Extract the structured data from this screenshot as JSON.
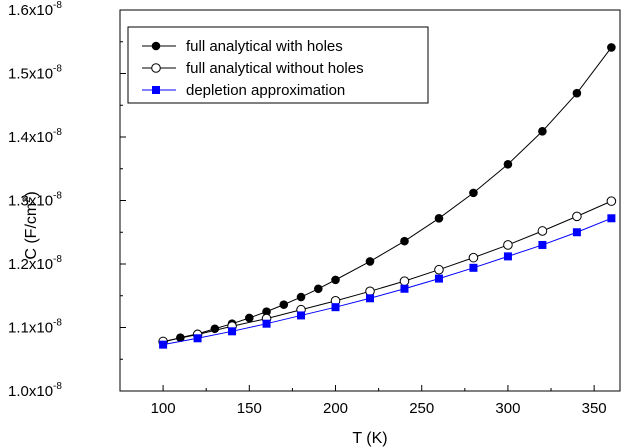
{
  "chart_data": {
    "type": "line",
    "xlabel": "T (K)",
    "ylabel": {
      "prefix": "C (F/cm",
      "sup": "2",
      "suffix": ")"
    },
    "xlim": [
      75,
      365
    ],
    "ylim": [
      1e-08,
      1.6e-08
    ],
    "x_ticks": [
      100,
      150,
      200,
      250,
      300,
      350
    ],
    "y_ticks": [
      {
        "value": 1e-08,
        "mantissa": "1.0x10",
        "exp": "-8"
      },
      {
        "value": 1.1e-08,
        "mantissa": "1.1x10",
        "exp": "-8"
      },
      {
        "value": 1.2e-08,
        "mantissa": "1.2x10",
        "exp": "-8"
      },
      {
        "value": 1.3e-08,
        "mantissa": "1.3x10",
        "exp": "-8"
      },
      {
        "value": 1.4e-08,
        "mantissa": "1.4x10",
        "exp": "-8"
      },
      {
        "value": 1.5e-08,
        "mantissa": "1.5x10",
        "exp": "-8"
      },
      {
        "value": 1.6e-08,
        "mantissa": "1.6x10",
        "exp": "-8"
      }
    ],
    "legend_position": "top-left",
    "grid": false,
    "series": [
      {
        "name": "full analytical with holes",
        "marker": "filled-circle",
        "line_color": "#000000",
        "marker_color": "#000000",
        "x": [
          100,
          110,
          120,
          130,
          140,
          150,
          160,
          170,
          180,
          190,
          200,
          220,
          240,
          260,
          280,
          300,
          320,
          340,
          360
        ],
        "y": [
          1.077e-08,
          1.084e-08,
          1.09e-08,
          1.098e-08,
          1.106e-08,
          1.115e-08,
          1.125e-08,
          1.136e-08,
          1.148e-08,
          1.161e-08,
          1.175e-08,
          1.204e-08,
          1.236e-08,
          1.272e-08,
          1.312e-08,
          1.357e-08,
          1.409e-08,
          1.469e-08,
          1.541e-08
        ]
      },
      {
        "name": "full analytical without holes",
        "marker": "open-circle",
        "line_color": "#000000",
        "marker_color": "#000000",
        "x": [
          100,
          120,
          140,
          160,
          180,
          200,
          220,
          240,
          260,
          280,
          300,
          320,
          340,
          360
        ],
        "y": [
          1.078e-08,
          1.089e-08,
          1.102e-08,
          1.114e-08,
          1.128e-08,
          1.142e-08,
          1.157e-08,
          1.173e-08,
          1.191e-08,
          1.21e-08,
          1.23e-08,
          1.252e-08,
          1.275e-08,
          1.299e-08
        ]
      },
      {
        "name": "depletion approximation",
        "marker": "filled-square",
        "line_color": "#0000ff",
        "marker_color": "#0000ff",
        "x": [
          100,
          120,
          140,
          160,
          180,
          200,
          220,
          240,
          260,
          280,
          300,
          320,
          340,
          360
        ],
        "y": [
          1.073e-08,
          1.083e-08,
          1.094e-08,
          1.106e-08,
          1.119e-08,
          1.132e-08,
          1.146e-08,
          1.161e-08,
          1.177e-08,
          1.194e-08,
          1.212e-08,
          1.23e-08,
          1.25e-08,
          1.272e-08
        ]
      }
    ]
  }
}
